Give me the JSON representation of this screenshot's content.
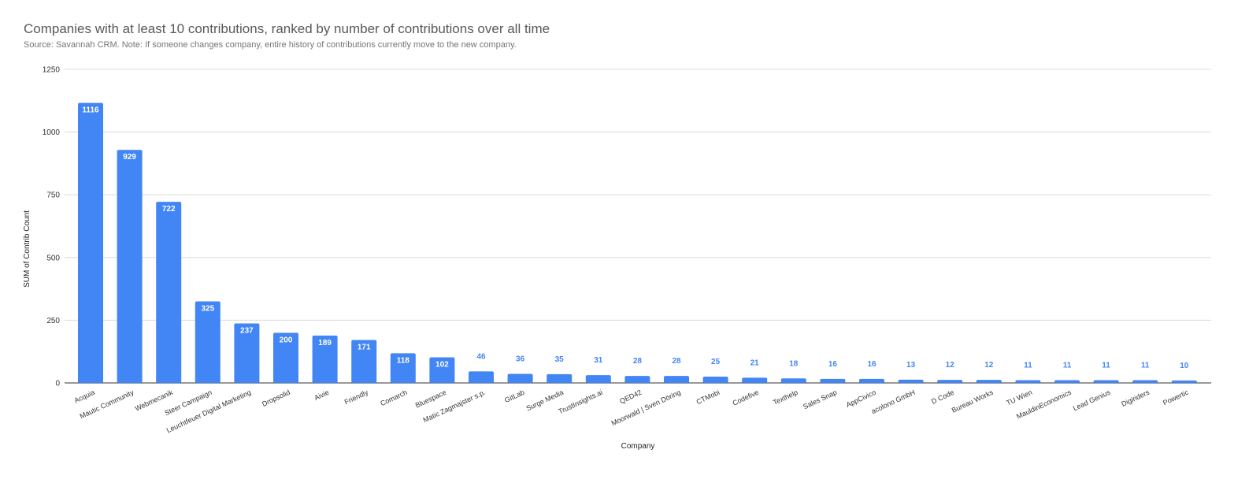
{
  "chart_data": {
    "type": "bar",
    "title": "Companies with at least 10 contributions, ranked by number of contributions over all time",
    "subtitle": "Source: Savannah CRM. Note: If someone changes company, entire history of contributions currently move to the new company.",
    "xlabel": "Company",
    "ylabel": "SUM of Contrib Count",
    "ylim": [
      0,
      1250
    ],
    "yticks": [
      0,
      250,
      500,
      750,
      1000,
      1250
    ],
    "grid": true,
    "legend": "none",
    "bar_color": "#4285f4",
    "categories": [
      "Acquia",
      "Mautic Community",
      "Webmecanik",
      "Steer Campaign",
      "Leuchtfeuer Digital Marketing",
      "Dropsolid",
      "Aivie",
      "Friendly",
      "Comarch",
      "Bluespace",
      "Matic Zagmajster s.p.",
      "GitLab",
      "Surge Media",
      "TrustInsights.ai",
      "QED42",
      "Moorwald | Sven Döring",
      "CTMobi",
      "Codefive",
      "Texthelp",
      "Sales Snap",
      "AppCivico",
      "acolono GmbH",
      "D Code",
      "Bureau Works",
      "TU Wien",
      "MauldinEconomics",
      "Lead Genius",
      "Digiriders",
      "Powertic"
    ],
    "values": [
      1116,
      929,
      722,
      325,
      237,
      200,
      189,
      171,
      118,
      102,
      46,
      36,
      35,
      31,
      28,
      28,
      25,
      21,
      18,
      16,
      16,
      13,
      12,
      12,
      11,
      11,
      11,
      11,
      10
    ]
  }
}
